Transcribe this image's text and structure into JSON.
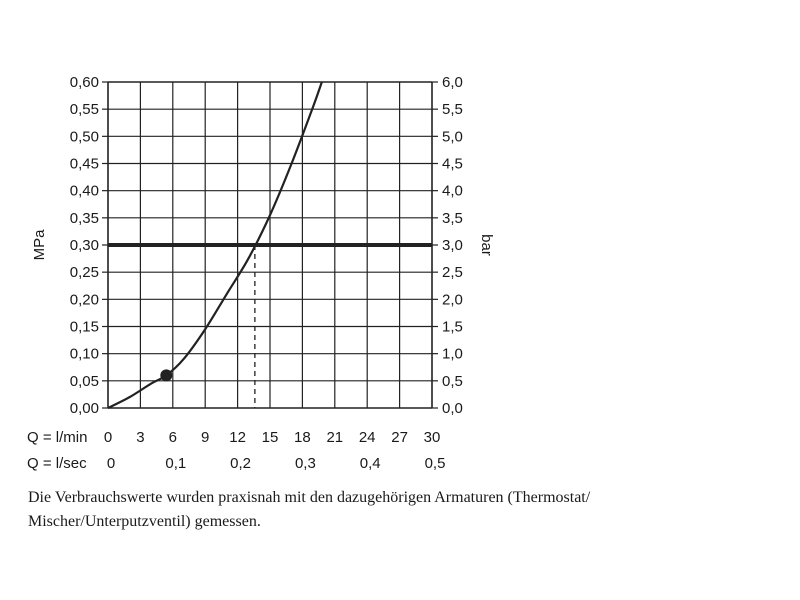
{
  "chart_data": {
    "type": "line",
    "ylabel_left": "MPa",
    "ylabel_right": "bar",
    "y_left_ticks": [
      "0,00",
      "0,05",
      "0,10",
      "0,15",
      "0,20",
      "0,25",
      "0,30",
      "0,35",
      "0,40",
      "0,45",
      "0,50",
      "0,55",
      "0,60"
    ],
    "y_right_ticks": [
      "0,0",
      "0,5",
      "1,0",
      "1,5",
      "2,0",
      "2,5",
      "3,0",
      "3,5",
      "4,0",
      "4,5",
      "5,0",
      "5,5",
      "6,0"
    ],
    "x_axis_lpm": {
      "label": "Q = l/min",
      "ticks": [
        0,
        3,
        6,
        9,
        12,
        15,
        18,
        21,
        24,
        27,
        30
      ]
    },
    "x_axis_lps": {
      "label": "Q = l/sec",
      "ticks": [
        "0",
        "0,1",
        "0,2",
        "0,3",
        "0,4",
        "0,5"
      ]
    },
    "xlim": [
      0,
      30
    ],
    "ylim": [
      0,
      0.6
    ],
    "grid": true,
    "series": [
      {
        "points": [
          {
            "x": 0,
            "y": 0
          },
          {
            "x": 2,
            "y": 0.02
          },
          {
            "x": 4,
            "y": 0.045
          },
          {
            "x": 5.4,
            "y": 0.06
          },
          {
            "x": 7,
            "y": 0.09
          },
          {
            "x": 9,
            "y": 0.145
          },
          {
            "x": 11,
            "y": 0.21
          },
          {
            "x": 13,
            "y": 0.275
          },
          {
            "x": 15,
            "y": 0.355
          },
          {
            "x": 17,
            "y": 0.45
          },
          {
            "x": 19,
            "y": 0.555
          },
          {
            "x": 19.8,
            "y": 0.6
          }
        ]
      }
    ],
    "reference_line": {
      "y": 0.3
    },
    "reference_drop": {
      "x": 13.6,
      "y": 0.3
    },
    "marker": {
      "x": 5.4,
      "y": 0.06
    }
  },
  "caption": {
    "line1": "Die Verbrauchswerte wurden praxisnah mit den dazugehörigen Armaturen (Thermostat/",
    "line2": "Mischer/Unterputzventil) gemessen."
  }
}
